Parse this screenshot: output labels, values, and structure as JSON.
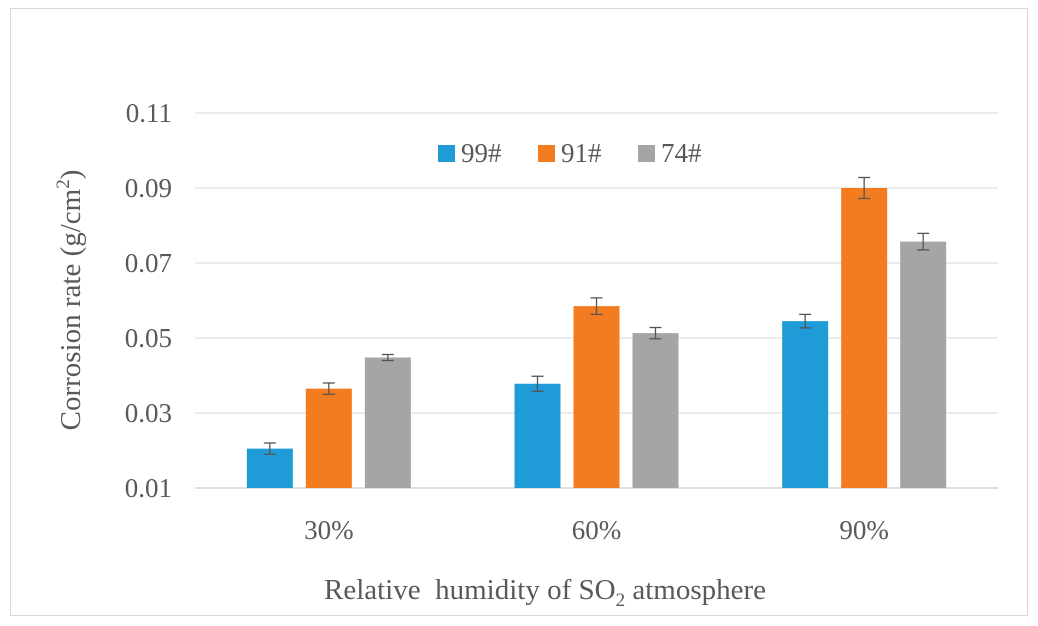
{
  "chart_data": {
    "type": "bar",
    "categories": [
      "30%",
      "60%",
      "90%"
    ],
    "series": [
      {
        "name": "99#",
        "color": "#1f9bd7",
        "values": [
          0.0205,
          0.0378,
          0.0545
        ],
        "errors": [
          0.0015,
          0.002,
          0.0018
        ]
      },
      {
        "name": "91#",
        "color": "#f47c20",
        "values": [
          0.0365,
          0.0585,
          0.09
        ],
        "errors": [
          0.0015,
          0.0022,
          0.0028
        ]
      },
      {
        "name": "74#",
        "color": "#a5a5a5",
        "values": [
          0.0448,
          0.0513,
          0.0757
        ],
        "errors": [
          0.0008,
          0.0015,
          0.0022
        ]
      }
    ],
    "ylim": [
      0.01,
      0.11
    ],
    "yticks": [
      "0.01",
      "0.03",
      "0.05",
      "0.07",
      "0.09",
      "0.11"
    ],
    "ylabel_main": "Corrosion rate (g/cm",
    "ylabel_sup": "2",
    "ylabel_end": ")",
    "xlabel_main": "Relative  humidity of SO",
    "xlabel_sub": "2",
    "xlabel_end": " atmosphere",
    "legend_position": "top-center",
    "grid": true
  }
}
